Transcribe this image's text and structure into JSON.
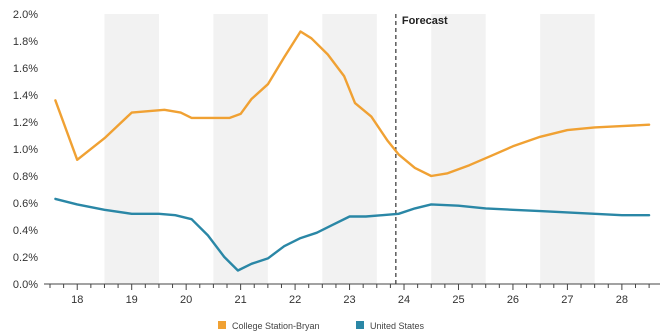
{
  "chart_data": {
    "type": "line",
    "title": "",
    "xlabel": "",
    "ylabel": "",
    "x_ticks": [
      "18",
      "19",
      "20",
      "21",
      "22",
      "23",
      "24",
      "25",
      "26",
      "27",
      "28"
    ],
    "x_range": [
      2017.5,
      2028.7
    ],
    "y_ticks": [
      "0.0%",
      "0.2%",
      "0.4%",
      "0.6%",
      "0.8%",
      "1.0%",
      "1.2%",
      "1.4%",
      "1.6%",
      "1.8%",
      "2.0%"
    ],
    "ylim": [
      0,
      2.0
    ],
    "grid": "alternating vertical bands",
    "legend_position": "bottom-center",
    "annotation": {
      "label": "Forecast",
      "x": 2023.85
    },
    "series": [
      {
        "name": "College Station-Bryan",
        "color": "#f0a133",
        "x": [
          2017.6,
          2018.0,
          2018.5,
          2019.0,
          2019.3,
          2019.6,
          2019.9,
          2020.1,
          2020.3,
          2020.6,
          2020.8,
          2021.0,
          2021.2,
          2021.5,
          2021.8,
          2022.1,
          2022.3,
          2022.6,
          2022.9,
          2023.1,
          2023.4,
          2023.7,
          2023.9,
          2024.2,
          2024.5,
          2024.8,
          2025.2,
          2025.6,
          2026.0,
          2026.5,
          2027.0,
          2027.5,
          2028.0,
          2028.5
        ],
        "y": [
          1.36,
          0.92,
          1.08,
          1.27,
          1.28,
          1.29,
          1.27,
          1.23,
          1.23,
          1.23,
          1.23,
          1.26,
          1.37,
          1.48,
          1.68,
          1.87,
          1.82,
          1.7,
          1.54,
          1.34,
          1.24,
          1.06,
          0.96,
          0.86,
          0.8,
          0.82,
          0.88,
          0.95,
          1.02,
          1.09,
          1.14,
          1.16,
          1.17,
          1.18
        ]
      },
      {
        "name": "United States",
        "color": "#2a87a6",
        "x": [
          2017.6,
          2018.0,
          2018.5,
          2019.0,
          2019.5,
          2019.8,
          2020.1,
          2020.4,
          2020.7,
          2020.95,
          2021.2,
          2021.5,
          2021.8,
          2022.1,
          2022.4,
          2022.7,
          2023.0,
          2023.3,
          2023.6,
          2023.9,
          2024.2,
          2024.5,
          2025.0,
          2025.5,
          2026.0,
          2026.5,
          2027.0,
          2027.5,
          2028.0,
          2028.5
        ],
        "y": [
          0.63,
          0.59,
          0.55,
          0.52,
          0.52,
          0.51,
          0.48,
          0.36,
          0.2,
          0.1,
          0.15,
          0.19,
          0.28,
          0.34,
          0.38,
          0.44,
          0.5,
          0.5,
          0.51,
          0.52,
          0.56,
          0.59,
          0.58,
          0.56,
          0.55,
          0.54,
          0.53,
          0.52,
          0.51,
          0.51
        ]
      }
    ]
  },
  "colors": {
    "band": "#f2f2f2",
    "axis": "#444444",
    "forecast_line": "#333333"
  }
}
